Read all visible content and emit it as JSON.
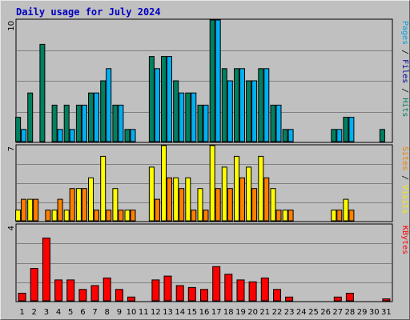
{
  "chart_data": [
    {
      "type": "bar",
      "title": "Daily usage for July 2024",
      "ymax_label": "10",
      "categories": [
        "1",
        "2",
        "3",
        "4",
        "5",
        "6",
        "7",
        "8",
        "9",
        "10",
        "11",
        "12",
        "13",
        "14",
        "15",
        "16",
        "17",
        "18",
        "19",
        "20",
        "21",
        "22",
        "23",
        "24",
        "25",
        "26",
        "27",
        "28",
        "29",
        "30",
        "31"
      ],
      "weekend_days": [
        "6",
        "7",
        "13",
        "14",
        "20",
        "21",
        "27",
        "28"
      ],
      "ylim": [
        0,
        10
      ],
      "ylabel_parts": [
        {
          "text": "Pages",
          "color": "#00a0e0"
        },
        {
          "text": " / ",
          "color": "#000000"
        },
        {
          "text": "Files",
          "color": "#0000a0"
        },
        {
          "text": " / ",
          "color": "#000000"
        },
        {
          "text": "Hits",
          "color": "#008060"
        }
      ],
      "series": [
        {
          "name": "Hits",
          "color": "#008060",
          "values": [
            2,
            4,
            8,
            3,
            3,
            3,
            4,
            5,
            3,
            1,
            0,
            7,
            7,
            5,
            4,
            3,
            10,
            6,
            6,
            5,
            6,
            3,
            1,
            0,
            0,
            0,
            1,
            2,
            0,
            0,
            1
          ]
        },
        {
          "name": "Files",
          "color": "#00b0f0",
          "values": [
            1,
            0,
            0,
            1,
            1,
            3,
            4,
            6,
            3,
            1,
            0,
            6,
            7,
            4,
            4,
            3,
            10,
            5,
            6,
            5,
            6,
            3,
            1,
            0,
            0,
            0,
            1,
            2,
            0,
            0,
            0
          ]
        }
      ]
    },
    {
      "type": "bar",
      "ymax_label": "7",
      "ylim": [
        0,
        7
      ],
      "ylabel_parts": [
        {
          "text": "Sites",
          "color": "#f08000"
        },
        {
          "text": " / ",
          "color": "#000000"
        },
        {
          "text": "Visits",
          "color": "#f0f000"
        }
      ],
      "series": [
        {
          "name": "Visits",
          "color": "#ffff00",
          "values": [
            1,
            2,
            0,
            1,
            1,
            3,
            4,
            6,
            3,
            1,
            0,
            5,
            7,
            4,
            4,
            3,
            7,
            5,
            6,
            5,
            6,
            3,
            1,
            0,
            0,
            0,
            1,
            2,
            0,
            0,
            0
          ]
        },
        {
          "name": "Sites",
          "color": "#ff8000",
          "values": [
            2,
            2,
            1,
            2,
            3,
            3,
            1,
            1,
            1,
            1,
            0,
            2,
            4,
            3,
            1,
            1,
            3,
            3,
            4,
            3,
            4,
            1,
            1,
            0,
            0,
            0,
            1,
            1,
            0,
            0,
            0
          ]
        }
      ]
    },
    {
      "type": "bar",
      "ymax_label": "4",
      "ylim": [
        0,
        4
      ],
      "ylabel_parts": [
        {
          "text": "KBytes",
          "color": "#ff0000"
        }
      ],
      "series": [
        {
          "name": "KBytes",
          "color": "#ff0000",
          "values": [
            0.4,
            1.7,
            3.3,
            1.1,
            1.1,
            0.6,
            0.8,
            1.2,
            0.6,
            0.2,
            0,
            1.1,
            1.3,
            0.8,
            0.7,
            0.6,
            1.8,
            1.4,
            1.1,
            1.0,
            1.2,
            0.6,
            0.2,
            0,
            0,
            0,
            0.2,
            0.4,
            0,
            0,
            0.1
          ]
        }
      ]
    }
  ]
}
